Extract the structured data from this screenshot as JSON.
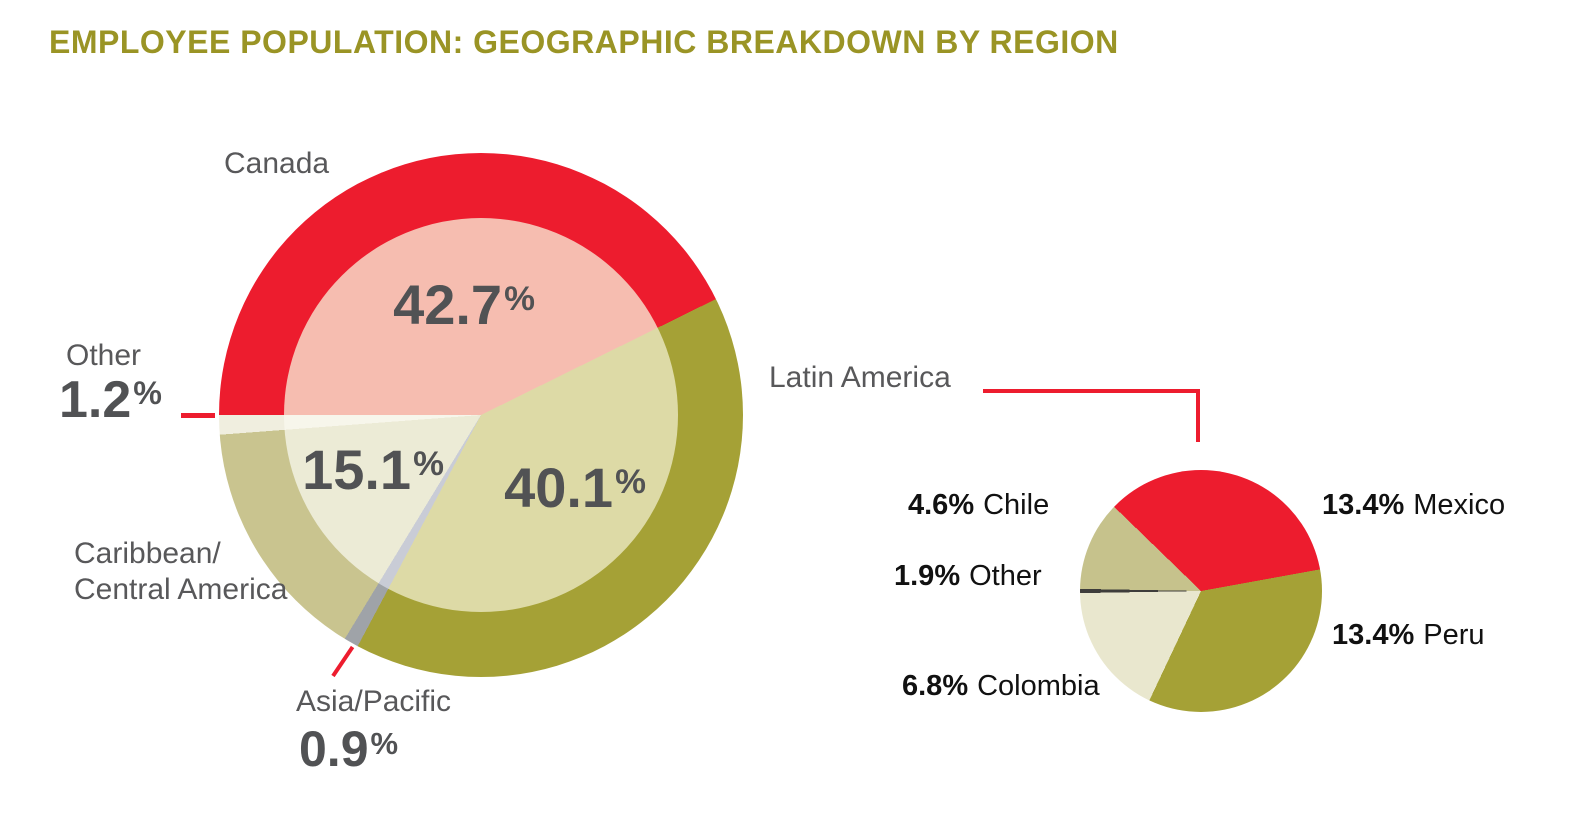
{
  "title": "EMPLOYEE POPULATION: GEOGRAPHIC BREAKDOWN BY REGION",
  "percent_sign": "%",
  "colors": {
    "title_olive": "#9A9425",
    "accent_red": "#ED1C2E",
    "label_gray": "#58585A",
    "value_gray": "#515254",
    "label_black": "#111111",
    "background": "#FFFFFF"
  },
  "chart_data": [
    {
      "type": "pie",
      "title": "Employee population by region",
      "unit": "%",
      "style": "full pie with saturated outer ring and lighter tinted center, starts at 9 o'clock going clockwise",
      "slices": [
        {
          "label": "Canada",
          "value": 42.7,
          "value_text": "42.7",
          "ring_color": "#ED1C2E",
          "center_color": "#F6BDB0",
          "display_deg": 153.72
        },
        {
          "label": "Latin America",
          "value": 40.1,
          "value_text": "40.1",
          "ring_color": "#A5A136",
          "center_color": "#DDDAA6",
          "display_deg": 144.36
        },
        {
          "label": "Asia/Pacific",
          "value": 0.9,
          "value_text": "0.9",
          "ring_color": "#9FA3A8",
          "center_color": "#C9CCD6",
          "display_deg": 3.24
        },
        {
          "label": "Caribbean/Central America",
          "label_lines": [
            "Caribbean/",
            "Central America"
          ],
          "value": 15.1,
          "value_text": "15.1",
          "ring_color": "#C9C48F",
          "center_color": "#ECEBD6",
          "display_deg": 54.36
        },
        {
          "label": "Other",
          "value": 1.2,
          "value_text": "1.2",
          "ring_color": "#F0EEDF",
          "center_color": "#F7F6EB",
          "display_deg": 4.32
        }
      ]
    },
    {
      "type": "pie",
      "title": "Latin America breakdown",
      "unit": "%",
      "style": "flat pie, starts at 9 o'clock going clockwise; Other drawn as thin dark sliver",
      "slices": [
        {
          "label": "Other",
          "value": 1.9,
          "value_label": "1.9%",
          "color": "#3E3D3B",
          "display_deg": 2.0
        },
        {
          "label": "Chile",
          "value": 4.6,
          "value_label": "4.6%",
          "color": "#C6C28C",
          "display_deg": 43.11
        },
        {
          "label": "Mexico",
          "value": 13.4,
          "value_label": "13.4%",
          "color": "#ED1C2E",
          "display_deg": 125.58
        },
        {
          "label": "Peru",
          "value": 13.4,
          "value_label": "13.4%",
          "color": "#A5A136",
          "display_deg": 125.58
        },
        {
          "label": "Colombia",
          "value": 6.8,
          "value_label": "6.8%",
          "color": "#E9E7CE",
          "display_deg": 63.73
        }
      ]
    }
  ]
}
